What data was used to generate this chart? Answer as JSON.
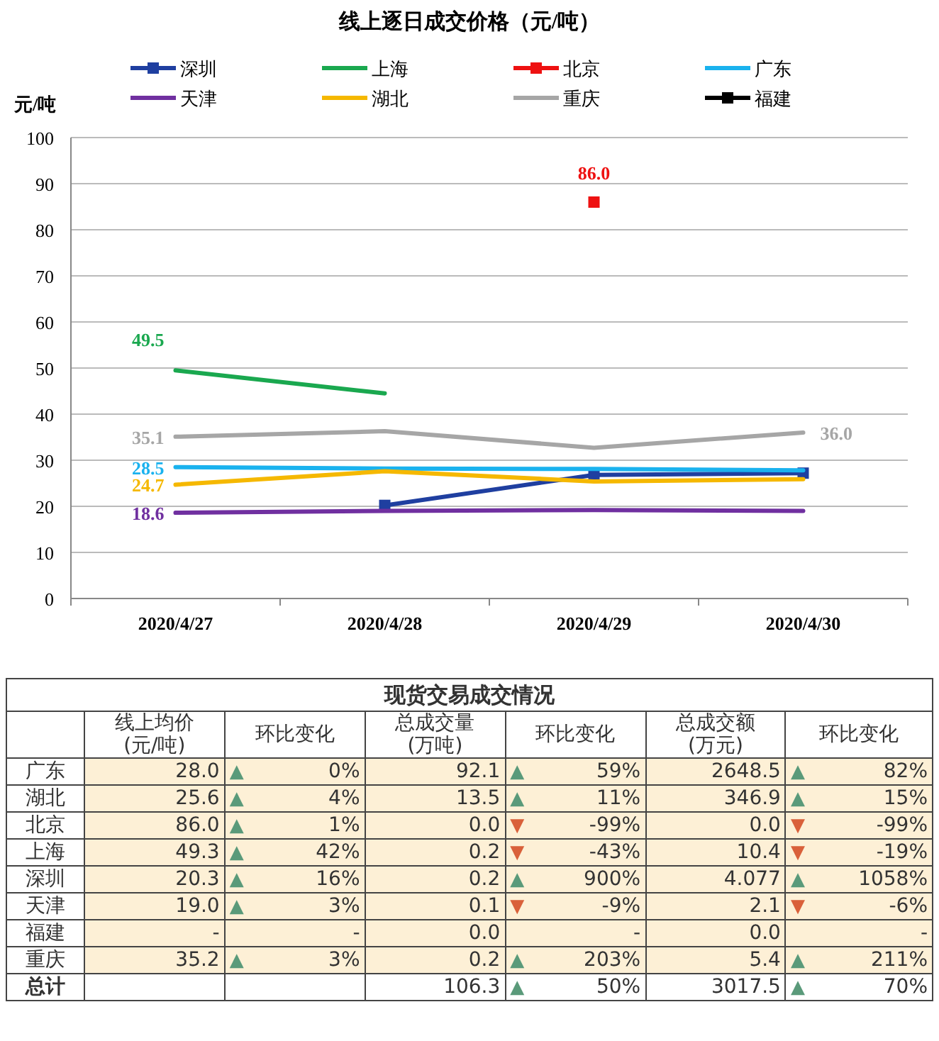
{
  "chart_data": [
    {
      "type": "line",
      "title": "线上逐日成交价格（元/吨）",
      "ylabel": "元/吨",
      "categories": [
        "2020/4/27",
        "2020/4/28",
        "2020/4/29",
        "2020/4/30"
      ],
      "ylim": [
        0,
        100
      ],
      "yticks": [
        0,
        10,
        20,
        30,
        40,
        50,
        60,
        70,
        80,
        90,
        100
      ],
      "grid": "y",
      "legend": "top",
      "line_style": "solid",
      "series": [
        {
          "name": "深圳",
          "color": "#1f3fa0",
          "marker": "square",
          "values": [
            null,
            20.2,
            26.8,
            27.2
          ]
        },
        {
          "name": "上海",
          "color": "#1aa84f",
          "values": [
            49.5,
            44.5,
            null,
            null
          ],
          "value_labels": [
            "49.5",
            null,
            null,
            null
          ]
        },
        {
          "name": "北京",
          "color": "#ee1111",
          "marker": "square",
          "values": [
            null,
            null,
            86.0,
            null
          ],
          "value_labels": [
            null,
            null,
            "86.0",
            null
          ]
        },
        {
          "name": "广东",
          "color": "#1ab2ee",
          "values": [
            28.5,
            28.2,
            28.1,
            27.8
          ],
          "value_labels": [
            "28.5",
            null,
            null,
            null
          ]
        },
        {
          "name": "天津",
          "color": "#7030a0",
          "values": [
            18.6,
            19.0,
            19.2,
            19.0
          ],
          "value_labels": [
            "18.6",
            null,
            null,
            null
          ]
        },
        {
          "name": "湖北",
          "color": "#f5b800",
          "values": [
            24.7,
            27.6,
            25.4,
            25.9
          ],
          "value_labels": [
            "24.7",
            null,
            null,
            null
          ]
        },
        {
          "name": "重庆",
          "color": "#a6a6a6",
          "values": [
            35.1,
            36.3,
            32.7,
            36.0
          ],
          "value_labels": [
            "35.1",
            null,
            null,
            "36.0"
          ]
        },
        {
          "name": "福建",
          "color": "#000000",
          "marker": "square",
          "values": [
            null,
            null,
            null,
            null
          ]
        }
      ]
    },
    {
      "type": "other",
      "title": "现货交易成交情况",
      "categories": [
        null,
        "线上均价\n(元/吨)",
        "环比变化",
        "总成交量\n(万吨)",
        "环比变化",
        "总成交额\n(万元)",
        "环比变化"
      ],
      "y_categories": [
        "广东",
        "湖北",
        "北京",
        "上海",
        "深圳",
        "天津",
        "福建",
        "重庆",
        "总计"
      ],
      "cell_labels": [
        [
          "28.0",
          "▲ 0%",
          "92.1",
          "▲ 59%",
          "2648.5",
          "▲ 82%"
        ],
        [
          "25.6",
          "▲ 4%",
          "13.5",
          "▲ 11%",
          "346.9",
          "▲ 15%"
        ],
        [
          "86.0",
          "▲ 1%",
          "0.0",
          "▼ -99%",
          "0.0",
          "▼ -99%"
        ],
        [
          "49.3",
          "▲ 42%",
          "0.2",
          "▼ -43%",
          "10.4",
          "▼ -19%"
        ],
        [
          "20.3",
          "▲ 16%",
          "0.2",
          "▲ 900%",
          "4.077",
          "▲ 1058%"
        ],
        [
          "19.0",
          "▲ 3%",
          "0.1",
          "▼ -9%",
          "2.1",
          "▼ -6%"
        ],
        [
          "-",
          "-",
          "0.0",
          "-",
          "0.0",
          "-"
        ],
        [
          "35.2",
          "▲ 3%",
          "0.2",
          "▲ 203%",
          "5.4",
          "▲ 211%"
        ],
        [
          null,
          null,
          "106.3",
          "▲ 50%",
          "3017.5",
          "▲ 70%"
        ]
      ]
    }
  ]
}
